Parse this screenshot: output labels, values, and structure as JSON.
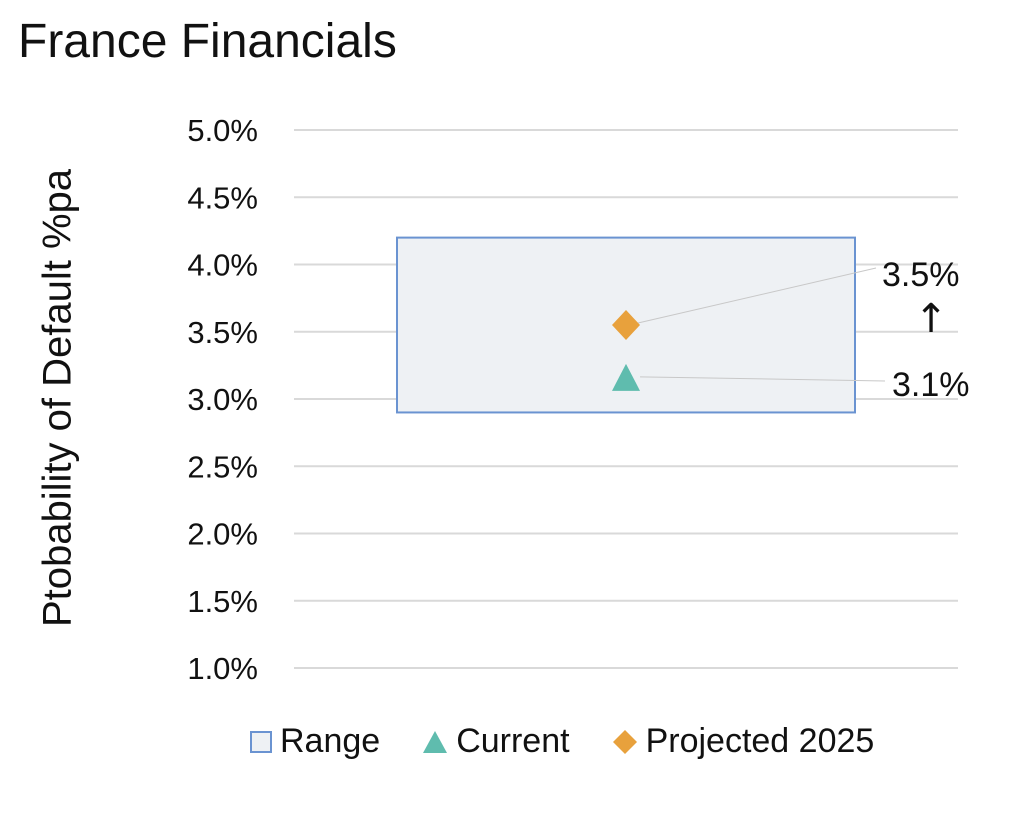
{
  "chart_data": {
    "type": "scatter",
    "title": "France Financials",
    "ylabel": "Ptobability of Default %pa",
    "xlabel": "",
    "ylim": [
      1.0,
      5.0
    ],
    "yticks": [
      "1.0%",
      "1.5%",
      "2.0%",
      "2.5%",
      "3.0%",
      "3.5%",
      "4.0%",
      "4.5%",
      "5.0%"
    ],
    "ytick_values": [
      1.0,
      1.5,
      2.0,
      2.5,
      3.0,
      3.5,
      4.0,
      4.5,
      5.0
    ],
    "grid": true,
    "legend_position": "bottom",
    "range": {
      "name": "Range",
      "low": 2.9,
      "high": 4.2,
      "fill": "#eef1f4",
      "stroke": "#6a93d1"
    },
    "series": [
      {
        "name": "Current",
        "value": 3.15,
        "label": "3.1%",
        "marker": "triangle",
        "color": "#5fbcae"
      },
      {
        "name": "Projected 2025",
        "value": 3.55,
        "label": "3.5%",
        "marker": "diamond",
        "color": "#e8a13c"
      }
    ],
    "annotation_arrow": "↑"
  }
}
